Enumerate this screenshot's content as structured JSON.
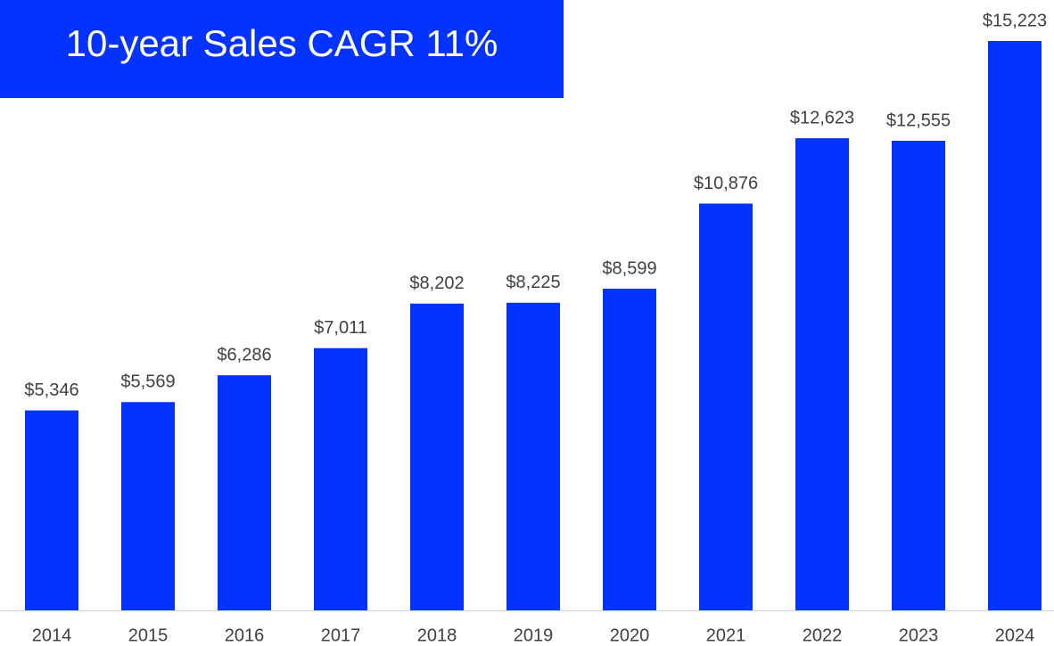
{
  "chart_data": {
    "type": "bar",
    "title": "10-year Sales CAGR 11%",
    "categories": [
      "2014",
      "2015",
      "2016",
      "2017",
      "2018",
      "2019",
      "2020",
      "2021",
      "2022",
      "2023",
      "2024"
    ],
    "values": [
      5346,
      5569,
      6286,
      7011,
      8202,
      8225,
      8599,
      10876,
      12623,
      12555,
      15223
    ],
    "value_labels": [
      "$5,346",
      "$5,569",
      "$6,286",
      "$7,011",
      "$8,202",
      "$8,225",
      "$8,599",
      "$10,876",
      "$12,623",
      "$12,555",
      "$15,223"
    ],
    "color": "#0433ff"
  }
}
